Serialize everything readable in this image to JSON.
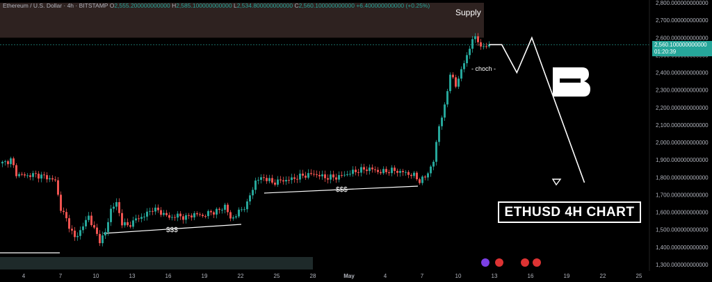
{
  "header": {
    "symbol": "Ethereum / U.S. Dollar · 4h · BITSTAMP",
    "o_label": "O",
    "o_value": "2,555.200000000000",
    "h_label": "H",
    "h_value": "2,585.100000000000",
    "l_label": "L",
    "l_value": "2,534.800000000000",
    "c_label": "C",
    "c_value": "2,560.100000000000",
    "change": "+6.400000000000 (+0.25%)"
  },
  "annotations": {
    "supply": "Supply",
    "choch": "- choch -",
    "sss_left": "$$$",
    "sss_right": "$$$",
    "title": "ETHUSD 4H CHART"
  },
  "price_tag": {
    "price": "2,560.100000000000",
    "countdown": "01:20:39"
  },
  "colors": {
    "up": "#26a69a",
    "down": "#ef5350",
    "supply_zone": "#2e2220",
    "demand_zone": "#1e2a2a"
  },
  "chart_data": {
    "type": "candlestick",
    "ylim": [
      1300,
      2800
    ],
    "y_ticks": [
      {
        "value": 2800,
        "label": "2,800.000000000000"
      },
      {
        "value": 2700,
        "label": "2,700.000000000000"
      },
      {
        "value": 2600,
        "label": "2,600.000000000000"
      },
      {
        "value": 2500,
        "label": "2,500.000000000000"
      },
      {
        "value": 2400,
        "label": "2,400.000000000000"
      },
      {
        "value": 2300,
        "label": "2,300.000000000000"
      },
      {
        "value": 2200,
        "label": "2,200.000000000000"
      },
      {
        "value": 2100,
        "label": "2,100.000000000000"
      },
      {
        "value": 2000,
        "label": "2,000.000000000000"
      },
      {
        "value": 1900,
        "label": "1,900.000000000000"
      },
      {
        "value": 1800,
        "label": "1,800.000000000000"
      },
      {
        "value": 1700,
        "label": "1,700.000000000000"
      },
      {
        "value": 1600,
        "label": "1,600.000000000000"
      },
      {
        "value": 1500,
        "label": "1,500.000000000000"
      },
      {
        "value": 1400,
        "label": "1,400.000000000000"
      },
      {
        "value": 1300,
        "label": "1,300.000000000000"
      }
    ],
    "x_ticks": [
      "4",
      "7",
      "10",
      "13",
      "16",
      "19",
      "22",
      "25",
      "28",
      "May",
      "4",
      "7",
      "10",
      "13",
      "16",
      "19",
      "22",
      "25"
    ],
    "last_price": 2560.1,
    "supply_zone": [
      2600,
      2800
    ],
    "path": [
      [
        0,
        1880
      ],
      [
        3,
        1900
      ],
      [
        5,
        1820
      ],
      [
        8,
        1810
      ],
      [
        12,
        1815
      ],
      [
        16,
        1800
      ],
      [
        19,
        1780
      ],
      [
        21,
        1620
      ],
      [
        23,
        1560
      ],
      [
        26,
        1450
      ],
      [
        29,
        1520
      ],
      [
        31,
        1580
      ],
      [
        33,
        1500
      ],
      [
        35,
        1440
      ],
      [
        37,
        1480
      ],
      [
        39,
        1620
      ],
      [
        41,
        1650
      ],
      [
        43,
        1540
      ],
      [
        45,
        1520
      ],
      [
        48,
        1560
      ],
      [
        51,
        1580
      ],
      [
        54,
        1620
      ],
      [
        57,
        1600
      ],
      [
        60,
        1570
      ],
      [
        63,
        1580
      ],
      [
        66,
        1570
      ],
      [
        69,
        1590
      ],
      [
        72,
        1580
      ],
      [
        75,
        1600
      ],
      [
        78,
        1610
      ],
      [
        80,
        1640
      ],
      [
        82,
        1560
      ],
      [
        85,
        1600
      ],
      [
        88,
        1650
      ],
      [
        91,
        1780
      ],
      [
        94,
        1800
      ],
      [
        97,
        1770
      ],
      [
        100,
        1780
      ],
      [
        104,
        1790
      ],
      [
        108,
        1810
      ],
      [
        112,
        1820
      ],
      [
        116,
        1800
      ],
      [
        120,
        1800
      ],
      [
        124,
        1820
      ],
      [
        128,
        1840
      ],
      [
        132,
        1850
      ],
      [
        136,
        1830
      ],
      [
        140,
        1840
      ],
      [
        144,
        1830
      ],
      [
        148,
        1810
      ],
      [
        150,
        1780
      ],
      [
        152,
        1800
      ],
      [
        155,
        1890
      ],
      [
        157,
        2100
      ],
      [
        159,
        2200
      ],
      [
        161,
        2400
      ],
      [
        163,
        2320
      ],
      [
        165,
        2420
      ],
      [
        167,
        2490
      ],
      [
        169,
        2600
      ],
      [
        171,
        2580
      ],
      [
        173,
        2540
      ],
      [
        175,
        2560.1
      ]
    ],
    "projection": [
      [
        2560,
        3
      ],
      [
        2400,
        7
      ],
      [
        2600,
        11
      ],
      [
        1770,
        25
      ]
    ]
  }
}
